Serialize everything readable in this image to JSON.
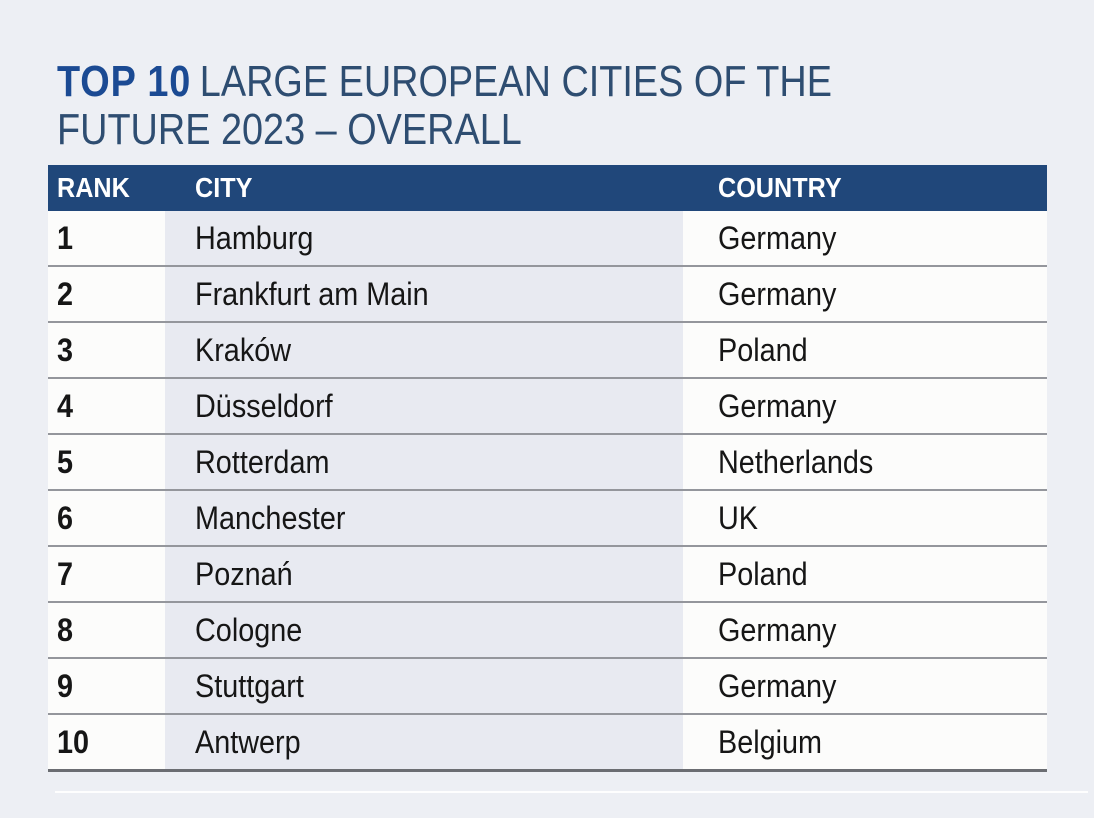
{
  "title": {
    "prefix": "TOP 10",
    "line1_rest": "LARGE EUROPEAN CITIES OF THE",
    "line2": "FUTURE 2023 – OVERALL"
  },
  "chart_data": {
    "type": "table",
    "title": "TOP 10 LARGE EUROPEAN CITIES OF THE FUTURE 2023 – OVERALL",
    "columns": [
      "RANK",
      "CITY",
      "COUNTRY"
    ],
    "rows": [
      {
        "rank": "1",
        "city": "Hamburg",
        "country": "Germany"
      },
      {
        "rank": "2",
        "city": "Frankfurt am Main",
        "country": "Germany"
      },
      {
        "rank": "3",
        "city": "Kraków",
        "country": "Poland"
      },
      {
        "rank": "4",
        "city": "Düsseldorf",
        "country": "Germany"
      },
      {
        "rank": "5",
        "city": "Rotterdam",
        "country": "Netherlands"
      },
      {
        "rank": "6",
        "city": "Manchester",
        "country": "UK"
      },
      {
        "rank": "7",
        "city": "Poznań",
        "country": "Poland"
      },
      {
        "rank": "8",
        "city": "Cologne",
        "country": "Germany"
      },
      {
        "rank": "9",
        "city": "Stuttgart",
        "country": "Germany"
      },
      {
        "rank": "10",
        "city": "Antwerp",
        "country": "Belgium"
      }
    ]
  },
  "colors": {
    "page_background": "#edeff4",
    "header_background": "#20477a",
    "header_text": "#ffffff",
    "title_accent": "#1b4a93",
    "title_text": "#2e4d71",
    "city_column_background": "#e8eaf1",
    "rank_country_background": "#fcfcfb",
    "row_divider": "#94969c",
    "table_bottom_border": "#6b6d72",
    "body_text": "#161616"
  }
}
